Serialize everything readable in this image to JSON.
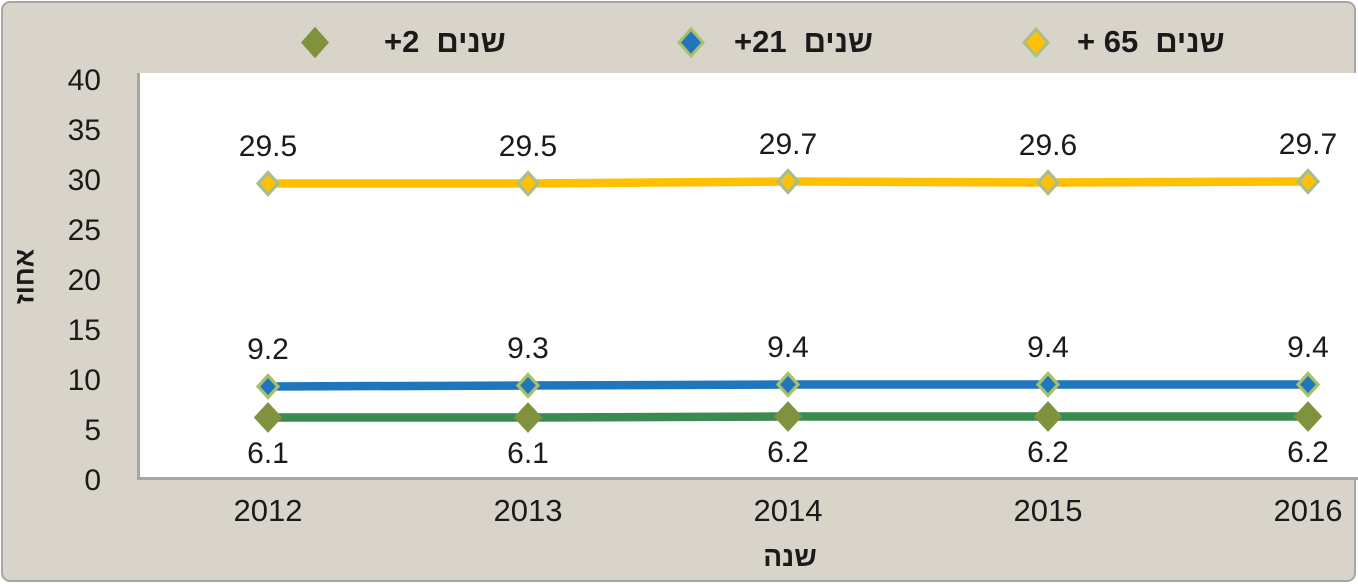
{
  "chart_data": {
    "type": "line",
    "x": [
      "2012",
      "2013",
      "2014",
      "2015",
      "2016"
    ],
    "series": [
      {
        "id": "age65plus",
        "legend_value": "+ 65",
        "legend_word": "שנים",
        "values": [
          29.5,
          29.5,
          29.7,
          29.6,
          29.7
        ],
        "line_color": "#FFC000",
        "marker_fill": "#FFC107",
        "marker_border": "#A9BE8C",
        "label_position": "above"
      },
      {
        "id": "age21plus",
        "legend_value": "+21",
        "legend_word": "שנים",
        "values": [
          9.2,
          9.3,
          9.4,
          9.4,
          9.4
        ],
        "line_color": "#1F76BC",
        "marker_fill": "#1F76BC",
        "marker_border": "#A9C06A",
        "label_position": "above"
      },
      {
        "id": "age2plus",
        "legend_value": "+2",
        "legend_word": "שנים",
        "values": [
          6.1,
          6.1,
          6.2,
          6.2,
          6.2
        ],
        "line_color": "#3B8A4F",
        "marker_fill": "#80923E",
        "marker_border": "#80923E",
        "label_position": "below"
      }
    ],
    "yticks": [
      40,
      35,
      30,
      25,
      20,
      15,
      10,
      5,
      0
    ],
    "ylim": [
      0,
      40
    ],
    "xlabel": "שנה",
    "ylabel": "אחוז",
    "legend_position": "top",
    "grid": false
  },
  "legend": {
    "items": [
      {
        "series": "age2plus",
        "value": "+2",
        "word": "שנים"
      },
      {
        "series": "age21plus",
        "value": "+21",
        "word": "שנים"
      },
      {
        "series": "age65plus",
        "value": "+ 65",
        "word": "שנים"
      }
    ]
  },
  "colors": {
    "background": "#d9d4ca",
    "plot_background": "#ffffff",
    "axis": "#a6a6a6",
    "text": "#1a1a1a"
  }
}
